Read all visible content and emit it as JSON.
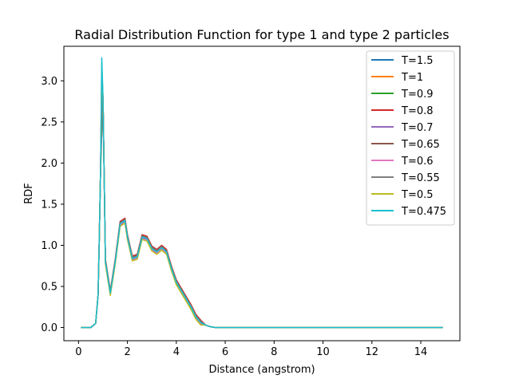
{
  "chart_data": {
    "type": "line",
    "title": "Radial Distribution Function for type 1 and type 2 particles",
    "xlabel": "Distance (angstrom)",
    "ylabel": "RDF",
    "xlim": [
      -0.6,
      15.6
    ],
    "ylim": [
      -0.16,
      3.42
    ],
    "xticks": [
      0,
      2,
      4,
      6,
      8,
      10,
      12,
      14
    ],
    "yticks": [
      0.0,
      0.5,
      1.0,
      1.5,
      2.0,
      2.5,
      3.0
    ],
    "ytick_labels": [
      "0.0",
      "0.5",
      "1.0",
      "1.5",
      "2.0",
      "2.5",
      "3.0"
    ],
    "grid": false,
    "legend_position": "top-right",
    "base_x": [
      0.1,
      0.3,
      0.5,
      0.7,
      0.8,
      0.85,
      0.9,
      0.95,
      1.0,
      1.1,
      1.3,
      1.5,
      1.7,
      1.9,
      2.0,
      2.2,
      2.4,
      2.6,
      2.8,
      3.0,
      3.2,
      3.4,
      3.6,
      3.8,
      4.0,
      4.2,
      4.4,
      4.6,
      4.8,
      5.0,
      5.2,
      5.4,
      5.6,
      5.8,
      6.0,
      7.0,
      8.0,
      9.0,
      10.0,
      11.0,
      12.0,
      13.0,
      14.0,
      14.9
    ],
    "base_y": [
      0.0,
      0.0,
      0.0,
      0.05,
      0.4,
      1.1,
      1.9,
      3.25,
      2.8,
      0.8,
      0.42,
      0.8,
      1.26,
      1.3,
      1.1,
      0.84,
      0.86,
      1.1,
      1.08,
      0.96,
      0.92,
      0.97,
      0.92,
      0.72,
      0.55,
      0.45,
      0.35,
      0.25,
      0.13,
      0.06,
      0.03,
      0.01,
      0.0,
      0.0,
      0.0,
      0.0,
      0.0,
      0.0,
      0.0,
      0.0,
      0.0,
      0.0,
      0.0,
      0.0
    ],
    "series": [
      {
        "name": "T=1.5",
        "color": "#1f77b4",
        "peak": 2.35,
        "offset": 0.0
      },
      {
        "name": "T=1",
        "color": "#ff7f0e",
        "peak": 2.55,
        "offset": 0.02
      },
      {
        "name": "T=0.9",
        "color": "#2ca02c",
        "peak": 2.65,
        "offset": 0.01
      },
      {
        "name": "T=0.8",
        "color": "#d62728",
        "peak": 2.75,
        "offset": 0.03
      },
      {
        "name": "T=0.7",
        "color": "#9467bd",
        "peak": 2.85,
        "offset": -0.01
      },
      {
        "name": "T=0.65",
        "color": "#8c564b",
        "peak": 2.95,
        "offset": 0.02
      },
      {
        "name": "T=0.6",
        "color": "#e377c2",
        "peak": 3.05,
        "offset": -0.02
      },
      {
        "name": "T=0.55",
        "color": "#7f7f7f",
        "peak": 3.1,
        "offset": 0.01
      },
      {
        "name": "T=0.5",
        "color": "#bcbd22",
        "peak": 3.2,
        "offset": -0.03
      },
      {
        "name": "T=0.475",
        "color": "#17becf",
        "peak": 3.28,
        "offset": 0.0
      }
    ]
  }
}
